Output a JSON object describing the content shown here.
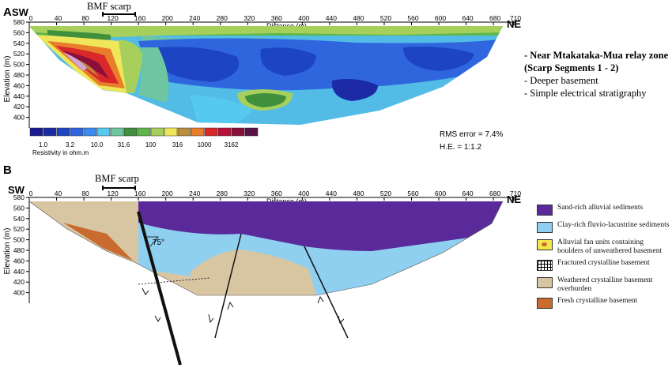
{
  "panel_a": {
    "letter": "A",
    "sw": "SW",
    "ne": "NE",
    "scarp_label": "BMF scarp",
    "distance_label": "Distance (m)",
    "elevation_label": "Elevation (m)",
    "distance_ticks": [
      "0",
      "40",
      "80",
      "120",
      "160",
      "200",
      "240",
      "280",
      "320",
      "360",
      "400",
      "440",
      "480",
      "520",
      "560",
      "600",
      "640",
      "680",
      "710"
    ],
    "elevation_ticks": [
      "580",
      "560",
      "540",
      "520",
      "500",
      "480",
      "460",
      "440",
      "420",
      "400"
    ],
    "scale_ticks": [
      "1.0",
      "3.2",
      "10.0",
      "31.6",
      "100",
      "316",
      "1000",
      "3162"
    ],
    "scale_title": "Resistivity in ohm.m",
    "scale_colors": [
      "#1b1b8f",
      "#1c2aa6",
      "#1d45c3",
      "#2f66de",
      "#3b8bef",
      "#55c9ee",
      "#6ec6a0",
      "#3f8f3c",
      "#5fb64a",
      "#a6d05b",
      "#f0e65a",
      "#b98e3d",
      "#e87d2b",
      "#d9272a",
      "#b8123a",
      "#8a0f3a",
      "#5a1145"
    ],
    "rms": "RMS error = 7.4%",
    "he": "H.E. = 1:1.2"
  },
  "info": {
    "line1": "- Near Mtakataka-Mua relay zone",
    "line2": "(Scarp Segments 1 - 2)",
    "line3": "- Deeper basement",
    "line4": "- Simple electrical stratigraphy"
  },
  "panel_b": {
    "letter": "B",
    "sw": "SW",
    "ne": "NE",
    "scarp_label": "BMF scarp",
    "distance_label": "Distance (m)",
    "elevation_label": "Elevation (m)",
    "distance_ticks": [
      "0",
      "40",
      "80",
      "120",
      "160",
      "200",
      "240",
      "280",
      "320",
      "360",
      "400",
      "440",
      "480",
      "520",
      "560",
      "600",
      "640",
      "680",
      "710"
    ],
    "elevation_ticks": [
      "580",
      "560",
      "540",
      "520",
      "500",
      "480",
      "460",
      "440",
      "420",
      "400"
    ],
    "dip_label": "75°"
  },
  "legend": [
    {
      "label": "Sand-rich alluvial sediments",
      "color": "#5b2a9a"
    },
    {
      "label": "Clay-rich fluvio-lacustrine sediments",
      "color": "#8fd0f0"
    },
    {
      "label": "Alluvial fan units containing boulders of unweathered basement",
      "color": "#f2e84a"
    },
    {
      "label": "Fractured crystalline basement",
      "color": "#ffffff"
    },
    {
      "label": "Weathered crystalline basement overburden",
      "color": "#d8c6a2"
    },
    {
      "label": "Fresh crystalline basement",
      "color": "#c96a2e"
    }
  ]
}
